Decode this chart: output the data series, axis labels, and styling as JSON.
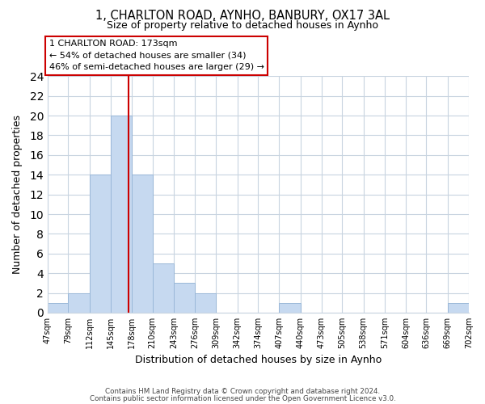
{
  "title": "1, CHARLTON ROAD, AYNHO, BANBURY, OX17 3AL",
  "subtitle": "Size of property relative to detached houses in Aynho",
  "xlabel": "Distribution of detached houses by size in Aynho",
  "ylabel": "Number of detached properties",
  "bar_edges": [
    47,
    79,
    112,
    145,
    178,
    210,
    243,
    276,
    309,
    342,
    374,
    407,
    440,
    473,
    505,
    538,
    571,
    604,
    636,
    669,
    702
  ],
  "bar_heights": [
    1,
    2,
    14,
    20,
    14,
    5,
    3,
    2,
    0,
    0,
    0,
    1,
    0,
    0,
    0,
    0,
    0,
    0,
    0,
    1
  ],
  "tick_labels": [
    "47sqm",
    "79sqm",
    "112sqm",
    "145sqm",
    "178sqm",
    "210sqm",
    "243sqm",
    "276sqm",
    "309sqm",
    "342sqm",
    "374sqm",
    "407sqm",
    "440sqm",
    "473sqm",
    "505sqm",
    "538sqm",
    "571sqm",
    "604sqm",
    "636sqm",
    "669sqm",
    "702sqm"
  ],
  "bar_color": "#c6d9f0",
  "bar_edgecolor": "#9ab8d8",
  "property_line_x": 173,
  "property_line_color": "#cc0000",
  "ylim": [
    0,
    24
  ],
  "yticks": [
    0,
    2,
    4,
    6,
    8,
    10,
    12,
    14,
    16,
    18,
    20,
    22,
    24
  ],
  "annotation_title": "1 CHARLTON ROAD: 173sqm",
  "annotation_line1": "← 54% of detached houses are smaller (34)",
  "annotation_line2": "46% of semi-detached houses are larger (29) →",
  "footer1": "Contains HM Land Registry data © Crown copyright and database right 2024.",
  "footer2": "Contains public sector information licensed under the Open Government Licence v3.0.",
  "background_color": "#ffffff",
  "grid_color": "#c8d4e0"
}
